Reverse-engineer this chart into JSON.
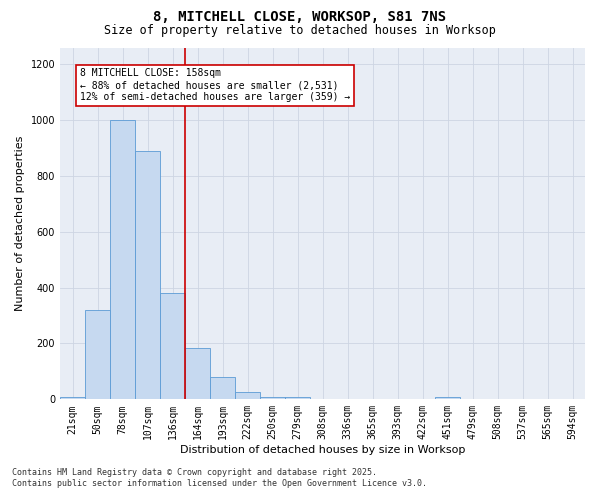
{
  "title1": "8, MITCHELL CLOSE, WORKSOP, S81 7NS",
  "title2": "Size of property relative to detached houses in Worksop",
  "xlabel": "Distribution of detached houses by size in Worksop",
  "ylabel": "Number of detached properties",
  "categories": [
    "21sqm",
    "50sqm",
    "78sqm",
    "107sqm",
    "136sqm",
    "164sqm",
    "193sqm",
    "222sqm",
    "250sqm",
    "279sqm",
    "308sqm",
    "336sqm",
    "365sqm",
    "393sqm",
    "422sqm",
    "451sqm",
    "479sqm",
    "508sqm",
    "537sqm",
    "565sqm",
    "594sqm"
  ],
  "bar_heights": [
    10,
    320,
    1000,
    890,
    380,
    185,
    80,
    25,
    10,
    10,
    0,
    0,
    0,
    0,
    0,
    10,
    0,
    0,
    0,
    0,
    0
  ],
  "bar_color": "#c6d9f0",
  "bar_edge_color": "#5b9bd5",
  "vline_x_index": 5,
  "vline_color": "#cc0000",
  "annotation_line1": "8 MITCHELL CLOSE: 158sqm",
  "annotation_line2": "← 88% of detached houses are smaller (2,531)",
  "annotation_line3": "12% of semi-detached houses are larger (359) →",
  "annotation_border_color": "#cc0000",
  "ylim": [
    0,
    1260
  ],
  "yticks": [
    0,
    200,
    400,
    600,
    800,
    1000,
    1200
  ],
  "grid_color": "#cdd5e2",
  "bg_color": "#e8edf5",
  "footnote1": "Contains HM Land Registry data © Crown copyright and database right 2025.",
  "footnote2": "Contains public sector information licensed under the Open Government Licence v3.0.",
  "title_fontsize": 10,
  "subtitle_fontsize": 8.5,
  "axis_label_fontsize": 8,
  "tick_fontsize": 7,
  "annotation_fontsize": 7,
  "footnote_fontsize": 6
}
